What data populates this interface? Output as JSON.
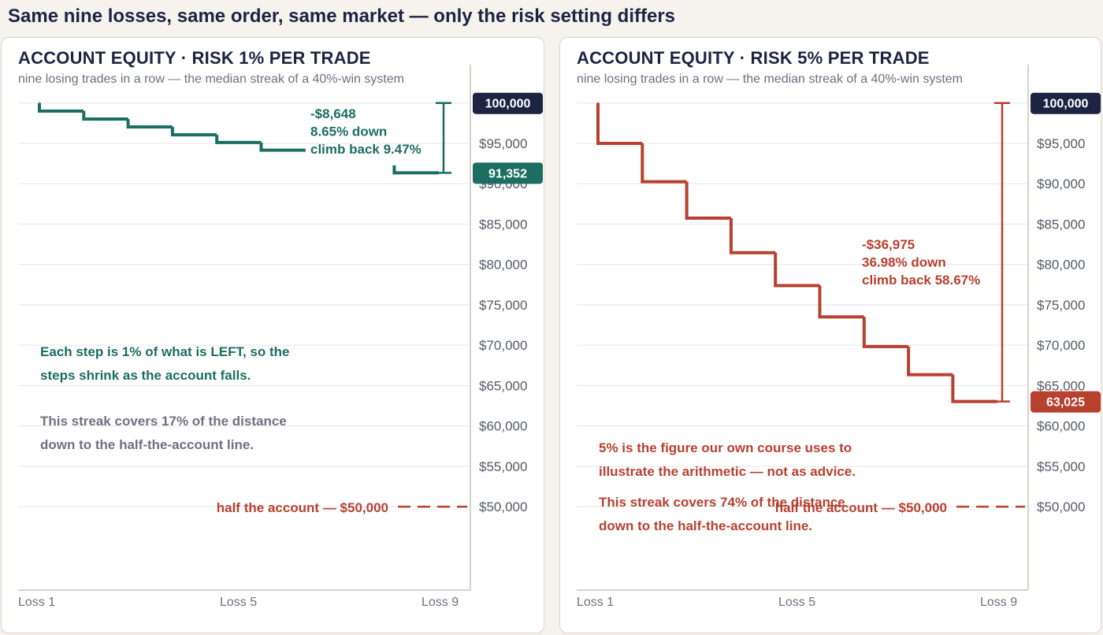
{
  "header": {
    "title": "Same nine losses, same order, same market — only the risk setting differs"
  },
  "colors": {
    "navy": "#1c2442",
    "green": "#1b6e61",
    "red": "#b8402f",
    "grid": "#e5e5e5",
    "axis": "#d6d2ca",
    "muted": "#6e7180"
  },
  "chart_data": [
    {
      "type": "line",
      "title": "ACCOUNT EQUITY · RISK 1% PER TRADE",
      "subtitle": "nine losing trades in a row — the median streak of a 40%-win system",
      "color": "#1b6e61",
      "x": [
        "Loss 1",
        "Loss 2",
        "Loss 3",
        "Loss 4",
        "Loss 5",
        "Loss 6",
        "Loss 7",
        "Loss 8",
        "Loss 9"
      ],
      "x_tick_labels": [
        "Loss 1",
        "Loss 5",
        "Loss 9"
      ],
      "y_start": 100000,
      "values": [
        99000,
        98010,
        97030,
        96060,
        95099,
        94148,
        93207,
        92274,
        91352
      ],
      "visible_segments": [
        [
          0,
          6
        ],
        [
          8,
          9
        ]
      ],
      "ylim": [
        44500,
        100800
      ],
      "y_ticks": [
        50000,
        55000,
        60000,
        65000,
        70000,
        75000,
        80000,
        85000,
        90000,
        95000
      ],
      "y_tick_labels": [
        "$50,000",
        "$55,000",
        "$60,000",
        "$65,000",
        "$70,000",
        "$75,000",
        "$80,000",
        "$85,000",
        "$90,000",
        "$95,000"
      ],
      "start_badge": "100,000",
      "end_badge": "91,352",
      "drawdown_annotation": [
        "-$8,648",
        "8.65% down",
        "climb back 9.47%"
      ],
      "half_line_value": 50000,
      "half_line_label": "half the account — $50,000",
      "notes": [
        {
          "lines": [
            "Each step is 1% of what is LEFT, so the",
            "steps shrink as the account falls."
          ],
          "color": "#1b6e61"
        },
        {
          "lines": [
            "This streak covers 17% of the distance",
            "down to the half-the-account line."
          ],
          "color": "#6e7180"
        }
      ]
    },
    {
      "type": "line",
      "title": "ACCOUNT EQUITY · RISK 5% PER TRADE",
      "subtitle": "nine losing trades in a row — the median streak of a 40%-win system",
      "color": "#b8402f",
      "x": [
        "Loss 1",
        "Loss 2",
        "Loss 3",
        "Loss 4",
        "Loss 5",
        "Loss 6",
        "Loss 7",
        "Loss 8",
        "Loss 9"
      ],
      "x_tick_labels": [
        "Loss 1",
        "Loss 5",
        "Loss 9"
      ],
      "y_start": 100000,
      "values": [
        95000,
        90250,
        85738,
        81451,
        77378,
        73509,
        69834,
        66342,
        63025
      ],
      "visible_segments": [
        [
          0,
          9
        ]
      ],
      "ylim": [
        44500,
        100800
      ],
      "y_ticks": [
        50000,
        55000,
        60000,
        65000,
        70000,
        75000,
        80000,
        85000,
        90000,
        95000
      ],
      "y_tick_labels": [
        "$50,000",
        "$55,000",
        "$60,000",
        "$65,000",
        "$70,000",
        "$75,000",
        "$80,000",
        "$85,000",
        "$90,000",
        "$95,000"
      ],
      "start_badge": "100,000",
      "end_badge": "63,025",
      "drawdown_annotation": [
        "-$36,975",
        "36.98% down",
        "climb back 58.67%"
      ],
      "half_line_value": 50000,
      "half_line_label": "half the account — $50,000",
      "notes": [
        {
          "lines": [
            "5% is the figure our own course uses to",
            "illustrate the arithmetic — not as advice."
          ],
          "color": "#b8402f"
        },
        {
          "lines": [
            "This streak covers 74% of the distance",
            "down to the half-the-account line."
          ],
          "color": "#b8402f"
        }
      ]
    }
  ]
}
